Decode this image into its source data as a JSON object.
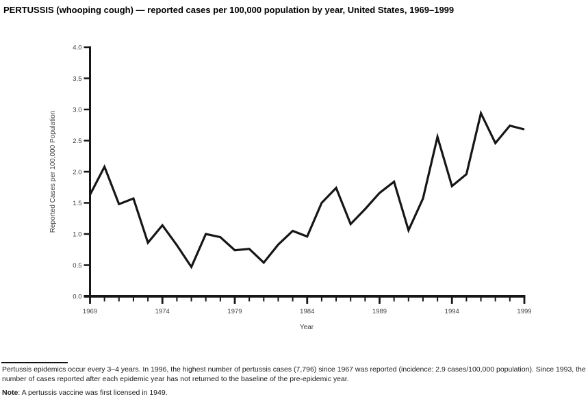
{
  "title": "PERTUSSIS (whooping cough) — reported cases per 100,000 population by year, United States, 1969–1999",
  "chart_data": {
    "type": "line",
    "title": "PERTUSSIS (whooping cough) — reported cases per 100,000 population by year, United States, 1969–1999",
    "xlabel": "Year",
    "ylabel": "Reported Cases per 100,000 Population",
    "ylim": [
      0.0,
      4.0
    ],
    "ytick_step": 0.5,
    "ytick_labels": [
      "0.0",
      "0.5",
      "1.0",
      "1.5",
      "2.0",
      "2.5",
      "3.0",
      "3.5",
      "4.0"
    ],
    "xtick_labeled_years": [
      1969,
      1974,
      1979,
      1984,
      1989,
      1994,
      1999
    ],
    "x": [
      1969,
      1970,
      1971,
      1972,
      1973,
      1974,
      1975,
      1976,
      1977,
      1978,
      1979,
      1980,
      1981,
      1982,
      1983,
      1984,
      1985,
      1986,
      1987,
      1988,
      1989,
      1990,
      1991,
      1992,
      1993,
      1994,
      1995,
      1996,
      1997,
      1998,
      1999
    ],
    "values": [
      1.63,
      2.08,
      1.48,
      1.57,
      0.86,
      1.14,
      0.82,
      0.47,
      1.0,
      0.95,
      0.74,
      0.76,
      0.54,
      0.83,
      1.05,
      0.96,
      1.5,
      1.74,
      1.16,
      1.4,
      1.66,
      1.84,
      1.06,
      1.57,
      2.56,
      1.77,
      1.96,
      2.94,
      2.46,
      2.74,
      2.68
    ],
    "line_color": "#161616",
    "axis_color": "#161616",
    "grid": false,
    "legend": "none"
  },
  "footnote": "Pertussis epidemics occur every 3–4 years. In 1996, the highest number of pertussis cases (7,796) since 1967 was reported (incidence: 2.9 cases/100,000 population). Since 1993, the number of cases reported after each epidemic year has not returned to the baseline of the pre-epidemic year.",
  "note": {
    "label": "Note",
    "text": ": A pertussis vaccine was first licensed in 1949."
  }
}
